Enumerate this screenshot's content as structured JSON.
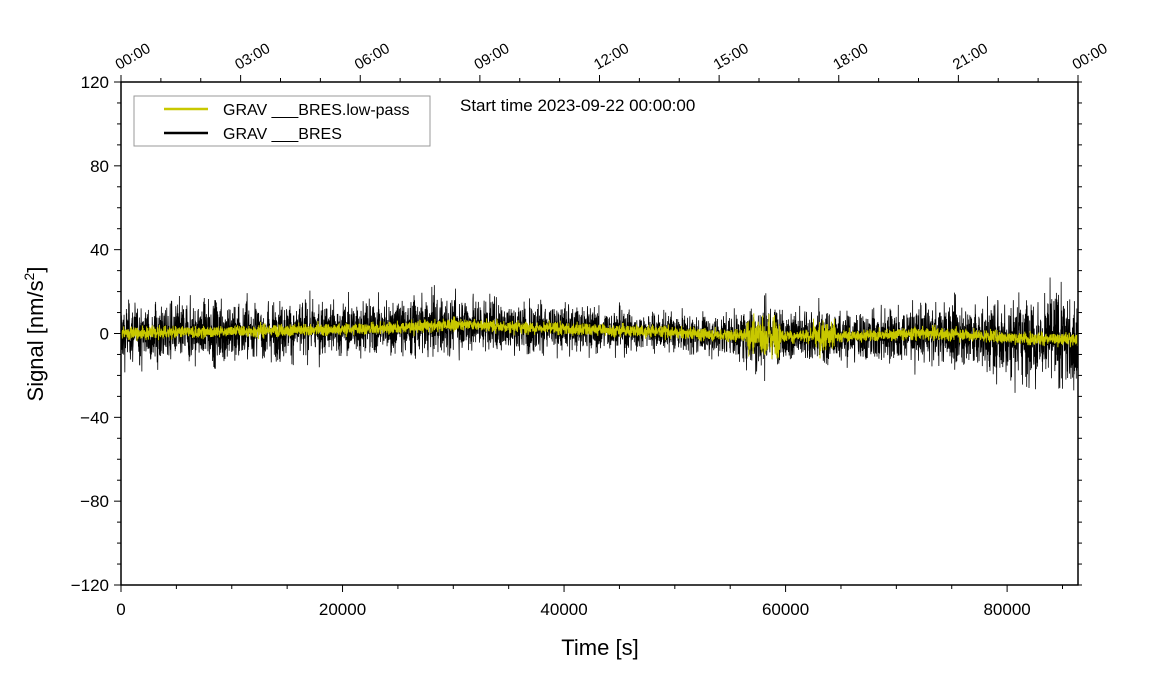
{
  "chart_data": {
    "type": "line",
    "title": "",
    "annotation": "Start time 2023-09-22 00:00:00",
    "xlabel": "Time [s]",
    "ylabel": "Signal [nm/s",
    "ylabel_sup": "2",
    "ylabel_close": "]",
    "xlim": [
      0,
      86400
    ],
    "ylim": [
      -120,
      120
    ],
    "xticks": [
      0,
      20000,
      40000,
      60000,
      80000
    ],
    "xtick_labels": [
      "0",
      "20000",
      "40000",
      "60000",
      "80000"
    ],
    "yticks": [
      120,
      80,
      40,
      0,
      -40,
      -80,
      -120
    ],
    "ytick_labels": [
      "120",
      "80",
      "40",
      "0",
      "−40",
      "−80",
      "−120"
    ],
    "top_ticks": [
      0,
      10800,
      21600,
      32400,
      43200,
      54000,
      64800,
      75600,
      86400
    ],
    "top_tick_labels": [
      "00:00",
      "03:00",
      "06:00",
      "09:00",
      "12:00",
      "15:00",
      "18:00",
      "21:00",
      "00:00"
    ],
    "legend_position": "top-left",
    "series": [
      {
        "name": "GRAV ___BRES.low-pass",
        "color": "#c8c800",
        "trend_x": [
          0,
          5000,
          10000,
          20000,
          26000,
          31000,
          36000,
          42000,
          48000,
          53000,
          58000,
          63000,
          68000,
          72000,
          76000,
          80000,
          86400
        ],
        "trend_y": [
          0,
          0.5,
          1,
          2,
          3,
          4.5,
          3,
          2,
          1,
          -0.5,
          -1,
          -1.5,
          -1,
          0,
          -0.5,
          -2,
          -3
        ],
        "noise_amplitude": 1.5
      },
      {
        "name": "GRAV ___BRES",
        "color": "#000000",
        "envelope_x": [
          0,
          10000,
          20000,
          30000,
          40000,
          50000,
          55000,
          58000,
          60000,
          63000,
          66000,
          72000,
          76000,
          80000,
          84000,
          86400
        ],
        "envelope_y": [
          13,
          13,
          12,
          12,
          10,
          8,
          9,
          16,
          10,
          12,
          11,
          12,
          14,
          17,
          20,
          20
        ]
      }
    ]
  }
}
